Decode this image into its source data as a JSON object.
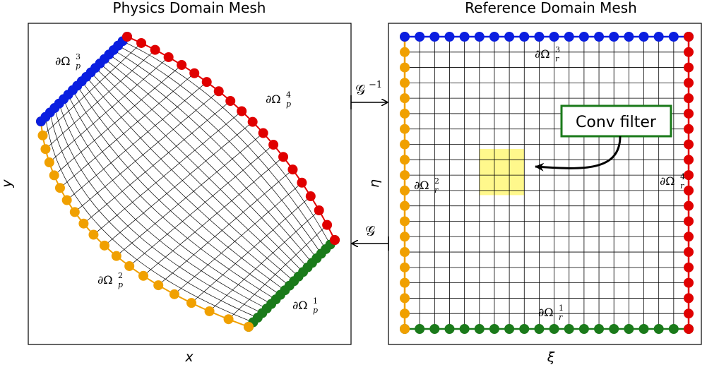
{
  "panels": [
    {
      "title": "Physics Domain Mesh",
      "x_label": "x",
      "y_label": "y",
      "boundaries": [
        {
          "base": "∂Ω",
          "sub": "p",
          "sup": "1"
        },
        {
          "base": "∂Ω",
          "sub": "p",
          "sup": "2"
        },
        {
          "base": "∂Ω",
          "sub": "p",
          "sup": "3"
        },
        {
          "base": "∂Ω",
          "sub": "p",
          "sup": "4"
        }
      ]
    },
    {
      "title": "Reference Domain Mesh",
      "x_label": "ξ",
      "y_label": "η",
      "boundaries": [
        {
          "base": "∂Ω",
          "sub": "r",
          "sup": "1"
        },
        {
          "base": "∂Ω",
          "sub": "r",
          "sup": "2"
        },
        {
          "base": "∂Ω",
          "sub": "r",
          "sup": "3"
        },
        {
          "base": "∂Ω",
          "sub": "r",
          "sup": "4"
        }
      ]
    }
  ],
  "maps": [
    {
      "base": "𝒢",
      "sup": "−1"
    },
    {
      "base": "𝒢"
    }
  ],
  "filter_label": "Conv filter"
}
